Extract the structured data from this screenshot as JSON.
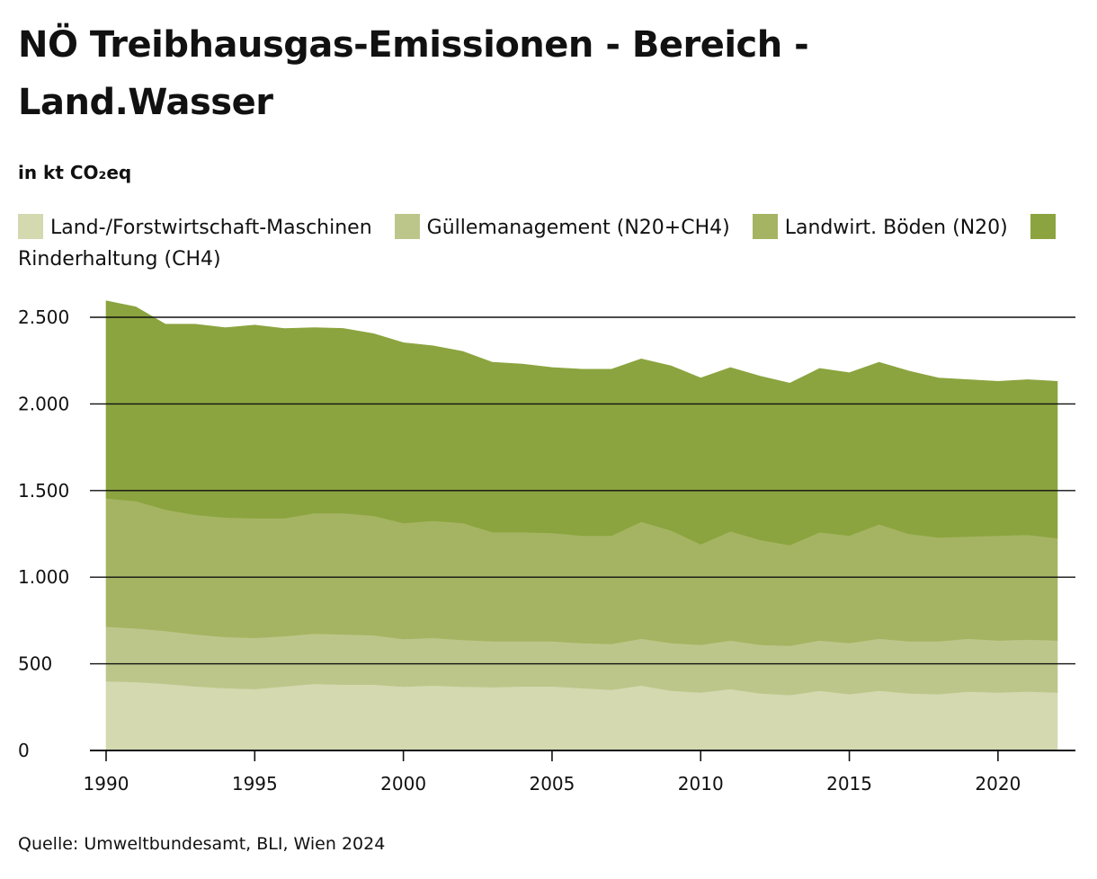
{
  "chart_data": {
    "type": "area",
    "stacked": true,
    "title": "NÖ Treibhausgas-Emissionen - Bereich - Land.Wasser",
    "subtitle": "in kt CO₂eq",
    "source": "Quelle: Umweltbundesamt, BLI, Wien 2024",
    "legend_position": "top",
    "grid": "horizontal",
    "ylim": [
      0,
      2500
    ],
    "xlim": [
      1990,
      2022
    ],
    "y_ticks": [
      {
        "value": 0,
        "label": "0"
      },
      {
        "value": 500,
        "label": "500"
      },
      {
        "value": 1000,
        "label": "1.000"
      },
      {
        "value": 1500,
        "label": "1.500"
      },
      {
        "value": 2000,
        "label": "2.000"
      },
      {
        "value": 2500,
        "label": "2.500"
      }
    ],
    "x_ticks": [
      1990,
      1995,
      2000,
      2005,
      2010,
      2015,
      2020
    ],
    "x": [
      1990,
      1991,
      1992,
      1993,
      1994,
      1995,
      1996,
      1997,
      1998,
      1999,
      2000,
      2001,
      2002,
      2003,
      2004,
      2005,
      2006,
      2007,
      2008,
      2009,
      2010,
      2011,
      2012,
      2013,
      2014,
      2015,
      2016,
      2017,
      2018,
      2019,
      2020,
      2021,
      2022
    ],
    "series": [
      {
        "name": "Land-/Forstwirtschaft-Maschinen",
        "color": "#d4d9b0",
        "values": [
          400,
          395,
          385,
          370,
          360,
          355,
          370,
          385,
          380,
          380,
          368,
          375,
          368,
          365,
          370,
          370,
          360,
          350,
          375,
          345,
          335,
          355,
          330,
          320,
          345,
          325,
          345,
          330,
          325,
          340,
          335,
          340,
          335
        ]
      },
      {
        "name": "Güllemanagement (N20+CH4)",
        "color": "#bdc68a",
        "values": [
          315,
          310,
          305,
          300,
          295,
          295,
          290,
          290,
          290,
          285,
          275,
          275,
          270,
          265,
          260,
          260,
          260,
          265,
          270,
          275,
          275,
          280,
          280,
          285,
          290,
          295,
          300,
          300,
          305,
          305,
          300,
          300,
          300
        ]
      },
      {
        "name": "Landwirt. Böden (N20)",
        "color": "#a5b462",
        "values": [
          740,
          735,
          700,
          690,
          690,
          690,
          680,
          695,
          700,
          690,
          670,
          675,
          675,
          630,
          630,
          625,
          620,
          625,
          675,
          650,
          580,
          630,
          605,
          580,
          625,
          620,
          660,
          620,
          600,
          590,
          605,
          605,
          590
        ]
      },
      {
        "name": "Rinderhaltung (CH4)",
        "color": "#8ba43f",
        "values": [
          1140,
          1120,
          1070,
          1100,
          1095,
          1115,
          1095,
          1070,
          1065,
          1050,
          1040,
          1010,
          990,
          980,
          970,
          955,
          960,
          960,
          940,
          950,
          960,
          945,
          945,
          935,
          945,
          940,
          935,
          940,
          920,
          905,
          890,
          895,
          905
        ]
      }
    ]
  }
}
